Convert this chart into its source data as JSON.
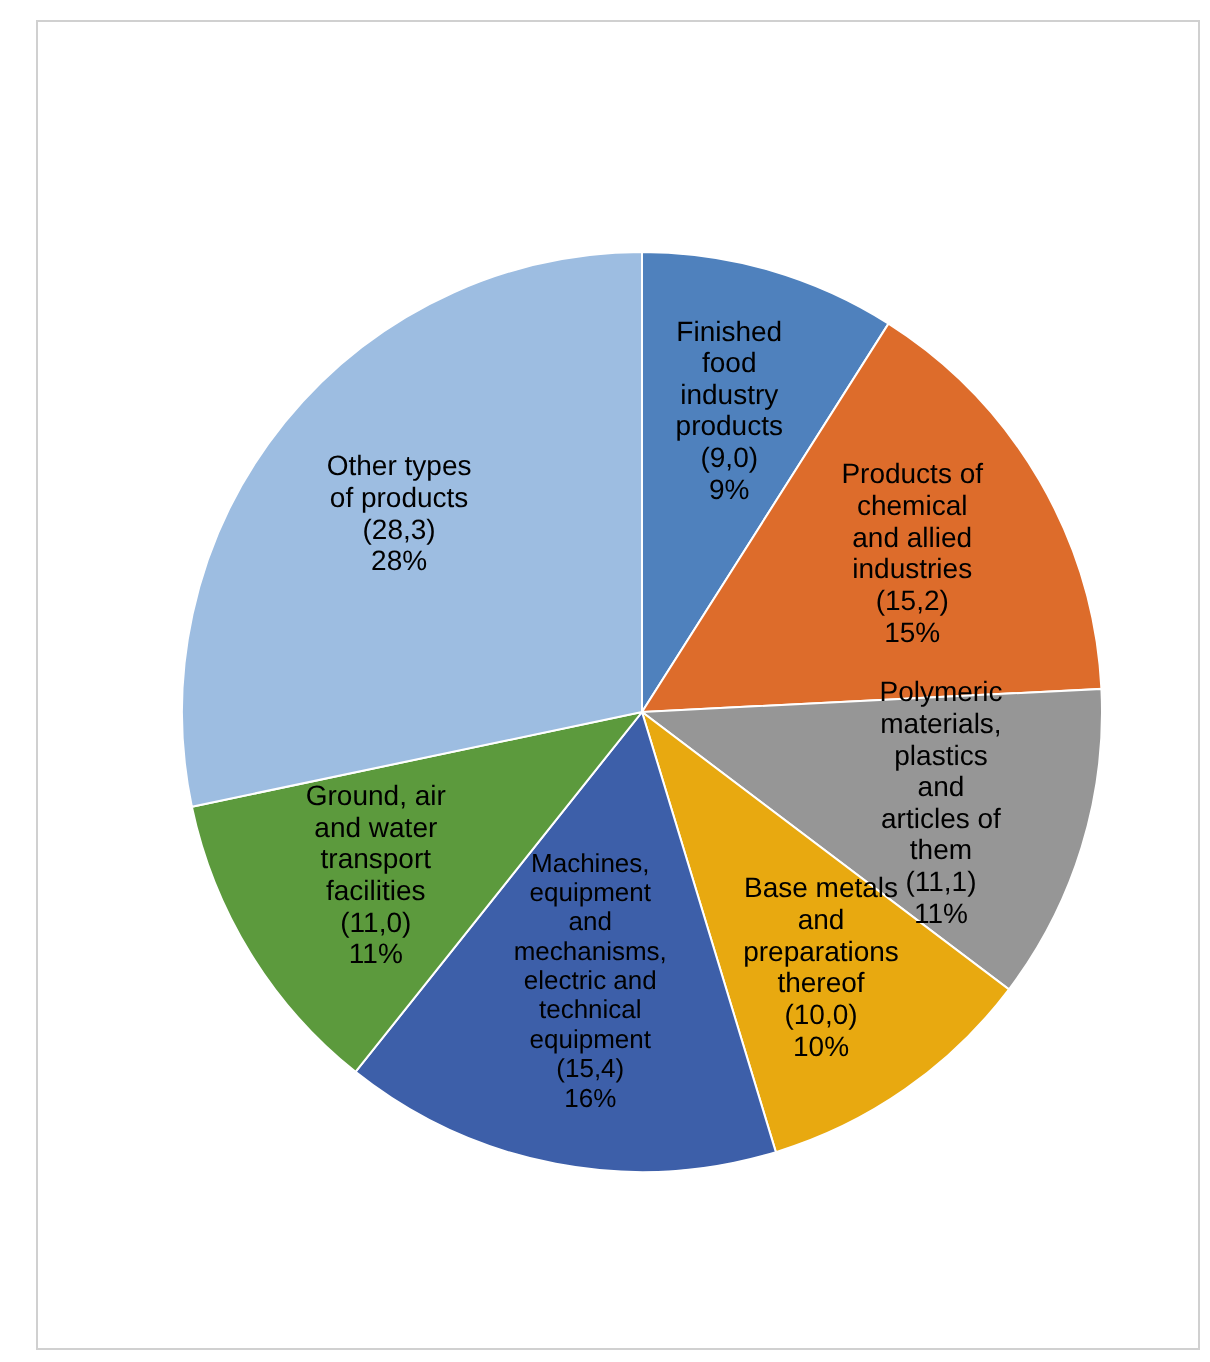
{
  "chart_data": {
    "type": "pie",
    "categories": [
      "Finished food industry products",
      "Products of chemical and allied industries",
      "Polymeric materials, plastics and articles of them",
      "Base metals and preparations thereof",
      "Machines, equipment and mechanisms, electric and technical equipment",
      "Ground, air and water transport facilities",
      "Other types of products"
    ],
    "values": [
      9.0,
      15.2,
      11.1,
      10.0,
      15.4,
      11.0,
      28.3
    ],
    "colors": [
      "#4f81bd",
      "#dd6c2b",
      "#969696",
      "#e8a910",
      "#3d5fa9",
      "#5c9a3d",
      "#9dbde1"
    ],
    "value_labels": [
      "(9,0) 9%",
      "(15,2) 15%",
      "(11,1) 11%",
      "(10,0) 10%",
      "(15,4) 16%",
      "(11,0) 11%",
      "(28,3) 28%"
    ],
    "data_labels": true,
    "legend": false
  }
}
